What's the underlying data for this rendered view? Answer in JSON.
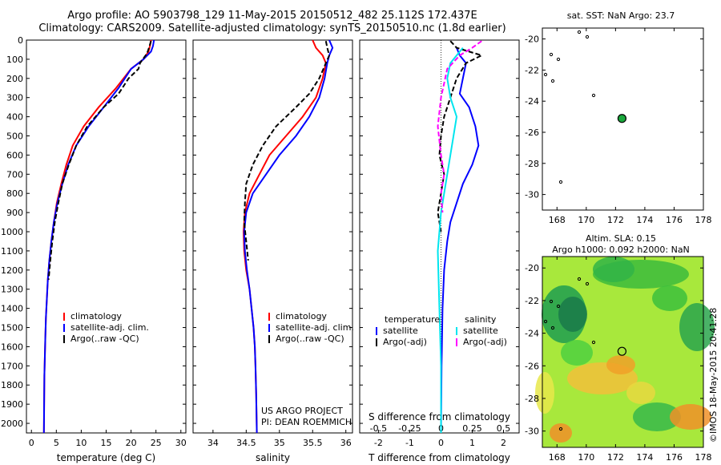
{
  "header": {
    "line1": "Argo profile: AO 5903798_129 11-May-2015 20150512_482 25.112S 172.437E",
    "line2": "Climatology: CARS2009. Satellite-adjusted climatology: synTS_20150510.nc (1.8d earlier)"
  },
  "colors": {
    "climatology": "#ff0000",
    "satellite": "#0000ff",
    "argo": "#000000",
    "sat_diff_s": "#00e5ee",
    "argo_diff_s": "#ff00ff"
  },
  "chart_data": [
    {
      "type": "line",
      "name": "temperature-panel",
      "xlabel": "temperature (deg C)",
      "ylabel": "",
      "xlim": [
        -1,
        31
      ],
      "ylim": [
        0,
        2050
      ],
      "y_reversed": true,
      "xticks": [
        "0",
        "5",
        "10",
        "15",
        "20",
        "25",
        "30"
      ],
      "yticks": [
        "0",
        "100",
        "200",
        "300",
        "400",
        "500",
        "600",
        "700",
        "800",
        "900",
        "1000",
        "1100",
        "1200",
        "1300",
        "1400",
        "1500",
        "1600",
        "1700",
        "1800",
        "1900",
        "2000"
      ],
      "legend": [
        "climatology",
        "satellite-adj. clim.",
        "Argo(..raw -QC)"
      ],
      "series": [
        {
          "name": "climatology",
          "color": "#ff0000",
          "x": [
            24,
            23.8,
            23.5,
            22.5,
            20,
            17,
            13.5,
            10.5,
            8.3,
            7,
            6,
            5.1,
            4.5,
            4,
            3.6,
            3.3,
            3.1,
            2.9,
            2.8,
            2.7,
            2.6,
            2.55,
            2.5
          ],
          "y": [
            0,
            30,
            60,
            100,
            150,
            250,
            350,
            450,
            550,
            650,
            750,
            850,
            950,
            1050,
            1150,
            1250,
            1350,
            1450,
            1550,
            1650,
            1750,
            1900,
            2050
          ]
        },
        {
          "name": "satellite-adj. clim.",
          "color": "#0000ff",
          "x": [
            24.6,
            24.4,
            24,
            22.5,
            20,
            17.5,
            14.5,
            11.5,
            9,
            7.4,
            6.2,
            5.2,
            4.5,
            4,
            3.6,
            3.3,
            3.1,
            2.9,
            2.8,
            2.7,
            2.6,
            2.55,
            2.5
          ],
          "y": [
            0,
            30,
            60,
            100,
            150,
            250,
            350,
            450,
            550,
            650,
            750,
            850,
            950,
            1050,
            1150,
            1250,
            1350,
            1450,
            1550,
            1650,
            1750,
            1900,
            2050
          ]
        },
        {
          "name": "Argo(..raw -QC)",
          "color": "#000000",
          "x": [
            24,
            23.6,
            23.2,
            21.8,
            21.5,
            19.5,
            17.5,
            14.5,
            11.2,
            9,
            7.5,
            6.2,
            5.4,
            4.7,
            4.2,
            3.8,
            3.45
          ],
          "y": [
            5,
            40,
            70,
            120,
            150,
            200,
            280,
            350,
            450,
            550,
            650,
            750,
            850,
            950,
            1050,
            1150,
            1250
          ]
        }
      ]
    },
    {
      "type": "line",
      "name": "salinity-panel",
      "xlabel": "salinity",
      "ylabel": "",
      "xlim": [
        33.7,
        36.1
      ],
      "ylim": [
        0,
        2050
      ],
      "y_reversed": true,
      "xticks": [
        "34",
        "34.5",
        "35",
        "35.5",
        "36"
      ],
      "legend": [
        "climatology",
        "satellite-adj. clim.",
        "Argo(..raw -QC)"
      ],
      "annotation": [
        "US ARGO PROJECT",
        "PI: DEAN ROEMMICH"
      ],
      "series": [
        {
          "name": "climatology",
          "color": "#ff0000",
          "x": [
            35.5,
            35.55,
            35.65,
            35.7,
            35.65,
            35.55,
            35.35,
            35.1,
            34.85,
            34.7,
            34.55,
            34.48,
            34.46,
            34.47,
            34.5,
            34.55,
            34.58,
            34.61,
            34.63,
            34.64,
            34.65,
            34.66
          ],
          "y": [
            0,
            40,
            80,
            120,
            200,
            300,
            400,
            500,
            600,
            700,
            800,
            900,
            1000,
            1100,
            1200,
            1300,
            1400,
            1500,
            1600,
            1700,
            1850,
            2050
          ]
        },
        {
          "name": "satellite-adj. clim.",
          "color": "#0000ff",
          "x": [
            35.75,
            35.8,
            35.75,
            35.72,
            35.68,
            35.6,
            35.45,
            35.25,
            35.0,
            34.8,
            34.6,
            34.5,
            34.47,
            34.48,
            34.51,
            34.55,
            34.58,
            34.61,
            34.63,
            34.64,
            34.65,
            34.66
          ],
          "y": [
            0,
            40,
            80,
            120,
            200,
            300,
            400,
            500,
            600,
            700,
            800,
            900,
            1000,
            1100,
            1200,
            1300,
            1400,
            1500,
            1600,
            1700,
            1850,
            2050
          ]
        },
        {
          "name": "Argo(..raw -QC)",
          "color": "#000000",
          "x": [
            35.7,
            35.72,
            35.75,
            35.7,
            35.6,
            35.45,
            35.25,
            34.95,
            34.75,
            34.6,
            34.5,
            34.48,
            34.47,
            34.5,
            34.53
          ],
          "y": [
            5,
            40,
            80,
            120,
            200,
            280,
            350,
            450,
            550,
            650,
            750,
            850,
            950,
            1050,
            1150
          ]
        }
      ]
    },
    {
      "type": "line",
      "name": "difference-panel",
      "xlabel": "T difference from climatology",
      "xlabel_top": "S difference from climatology",
      "xlim": [
        -2.6,
        2.5
      ],
      "ylim": [
        0,
        2050
      ],
      "y_reversed": true,
      "xticks": [
        "-2",
        "-1",
        "0",
        "1",
        "2"
      ],
      "xticks_top": [
        "-0.5",
        "-0.25",
        "0",
        "0.25",
        "0.5"
      ],
      "legend": [
        "temperature",
        "satellite",
        "Argo(-adj)",
        "salinity",
        "satellite",
        "Argo(-adj)"
      ],
      "series": [
        {
          "name": "temperature satellite",
          "color": "#0000ff",
          "x": [
            0.5,
            0.6,
            0.8,
            0.7,
            0.6,
            0.9,
            1.1,
            1.2,
            1.0,
            0.7,
            0.5,
            0.3,
            0.2,
            0.1,
            0.05,
            0.02,
            0
          ],
          "y": [
            40,
            80,
            120,
            200,
            280,
            350,
            450,
            550,
            650,
            750,
            850,
            950,
            1050,
            1200,
            1400,
            1700,
            2050
          ]
        },
        {
          "name": "temperature Argo(-adj)",
          "color": "#000000",
          "x": [
            0.3,
            0.5,
            1.3,
            0.8,
            0.5,
            0.3,
            0.1,
            0.0,
            -0.05,
            0.1,
            0.0,
            -0.1,
            0.0
          ],
          "y": [
            5,
            40,
            80,
            120,
            200,
            300,
            400,
            500,
            600,
            700,
            800,
            900,
            1000
          ]
        },
        {
          "name": "salinity satellite",
          "color": "#00e5ee",
          "x": [
            0.7,
            0.5,
            0.3,
            0.2,
            0.3,
            0.5,
            0.4,
            0.3,
            0.2,
            0.1,
            0.0,
            -0.1,
            -0.05,
            0,
            0
          ],
          "y": [
            40,
            80,
            120,
            200,
            300,
            400,
            500,
            600,
            700,
            800,
            900,
            1100,
            1400,
            1700,
            2050
          ]
        },
        {
          "name": "salinity Argo(-adj)",
          "color": "#ff00ff",
          "x": [
            1.3,
            1.0,
            0.6,
            0.2,
            0.0,
            -0.1,
            0.0,
            0.1,
            0.0,
            0.05
          ],
          "y": [
            5,
            40,
            80,
            150,
            300,
            450,
            600,
            700,
            800,
            900
          ]
        }
      ]
    },
    {
      "type": "scatter",
      "name": "sst-map",
      "title": "sat. SST: NaN Argo: 23.7",
      "xlim": [
        167,
        178
      ],
      "ylim": [
        -31,
        -19.3
      ],
      "xticks": [
        "168",
        "170",
        "172",
        "174",
        "176",
        "178"
      ],
      "yticks": [
        "-20",
        "-22",
        "-24",
        "-26",
        "-28",
        "-30"
      ],
      "points": [
        {
          "x": 172.44,
          "y": -25.11,
          "label": "Argo"
        }
      ]
    },
    {
      "type": "heatmap",
      "name": "sla-map",
      "title": "Altim. SLA: 0.15",
      "subtitle": "Argo h1000: 0.092 h2000: NaN",
      "xlim": [
        167,
        178
      ],
      "ylim": [
        -31,
        -19.3
      ],
      "xticks": [
        "168",
        "170",
        "172",
        "174",
        "176",
        "178"
      ],
      "yticks": [
        "-20",
        "-22",
        "-24",
        "-26",
        "-28",
        "-30"
      ],
      "points": [
        {
          "x": 172.44,
          "y": -25.11,
          "label": "Argo"
        }
      ]
    }
  ],
  "footer": {
    "stamp": "©IMOS 18-May-2015 20:41:28"
  }
}
